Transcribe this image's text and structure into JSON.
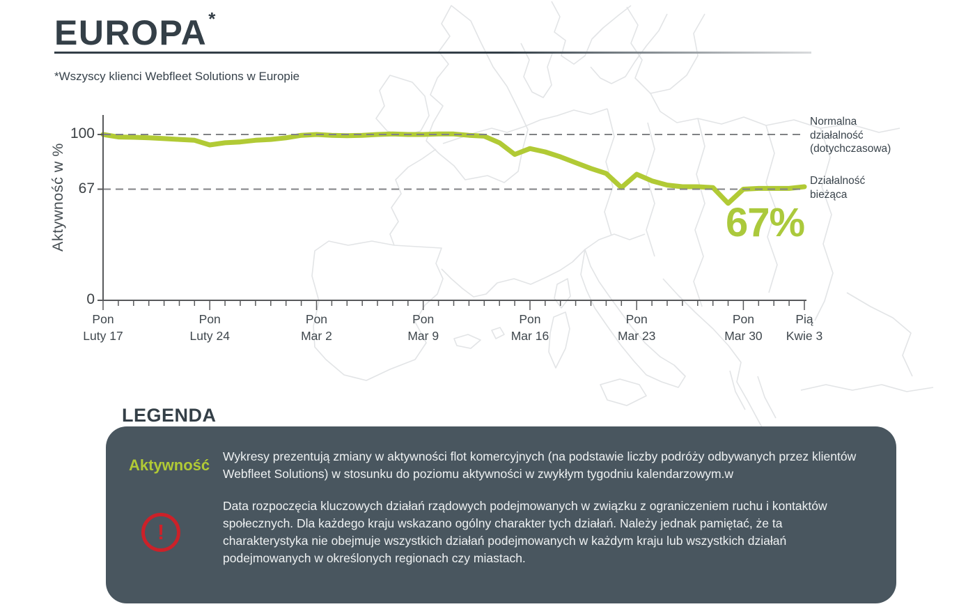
{
  "header": {
    "title": "EUROPA",
    "title_asterisk": "*",
    "subtitle": "*Wszyscy klienci Webfleet Solutions w Europie"
  },
  "chart_data": {
    "type": "line",
    "title": "",
    "xlabel": "",
    "ylabel": "Aktywność w %",
    "ylim": [
      0,
      105
    ],
    "yticks": [
      100,
      67,
      0
    ],
    "x_description": "wartości dzienne od Pon Luty 17 do Pią Kwie 3",
    "x_tick_labels": [
      {
        "day": 0,
        "line1": "Pon",
        "line2": "Luty 17"
      },
      {
        "day": 7,
        "line1": "Pon",
        "line2": "Luty 24"
      },
      {
        "day": 14,
        "line1": "Pon",
        "line2": "Mar 2"
      },
      {
        "day": 21,
        "line1": "Pon",
        "line2": "Mar 9"
      },
      {
        "day": 28,
        "line1": "Pon",
        "line2": "Mar 16"
      },
      {
        "day": 35,
        "line1": "Pon",
        "line2": "Mar 23"
      },
      {
        "day": 42,
        "line1": "Pon",
        "line2": "Mar 30"
      },
      {
        "day": 46,
        "line1": "Pią",
        "line2": "Kwie 3"
      }
    ],
    "series": [
      {
        "name": "Aktywność flot w Europie",
        "color": "#b1ca35",
        "values": [
          100,
          98.5,
          98.3,
          98,
          97.5,
          97,
          96.5,
          93.7,
          95,
          95.5,
          96.5,
          97,
          98,
          99.5,
          100,
          99.5,
          99.3,
          99.5,
          100,
          100.3,
          100,
          100,
          100.3,
          100.3,
          99.5,
          99,
          95,
          88,
          91.5,
          89.5,
          86.5,
          83,
          79.5,
          76.5,
          68,
          76,
          72,
          69.5,
          68.5,
          68.5,
          68,
          58.5,
          67,
          67.5,
          67.5,
          67.5,
          68.5
        ]
      }
    ],
    "reference_lines": [
      {
        "value": 100,
        "label": "Normalna\ndziałalność\n(dotychczasowa)"
      },
      {
        "value": 67,
        "label": "Działalność\nbieżąca"
      }
    ],
    "annotation": {
      "text": "67%",
      "color": "#abc93c"
    },
    "grid": "dashed horizontal reference lines at 100 and 67",
    "legend_position": "labels right of plot"
  },
  "legend": {
    "heading": "LEGENDA",
    "panel_color": "#49565f",
    "items": [
      {
        "label": "Aktywność",
        "label_color": "#b1ca35",
        "text": "Wykresy prezentują zmiany w aktywności flot komercyjnych (na podstawie liczby podróży odbywanych przez klientów Webfleet Solutions) w stosunku do poziomu aktywności w zwykłym tygodniu kalendarzowym.w"
      },
      {
        "icon": "warning-icon",
        "icon_glyph": "!",
        "icon_color": "#cc2129",
        "text": "Data rozpoczęcia kluczowych działań rządowych podejmowanych w związku z ograniczeniem ruchu i kontaktów społecznych. Dla każdego kraju wskazano ogólny charakter tych działań. Należy jednak pamiętać, że ta  charakterystyka nie obejmuje wszystkich działań podejmowanych w każdym kraju lub wszystkich działań podejmowanych w określonych regionach czy miastach."
      }
    ]
  },
  "colors": {
    "accent_green": "#b1ca35",
    "dark_slate": "#37424b",
    "panel": "#49565f",
    "warning_red": "#cc2129",
    "axis": "#58595b",
    "dashed_line": "#808285",
    "map_outline": "#e2e4e6"
  }
}
